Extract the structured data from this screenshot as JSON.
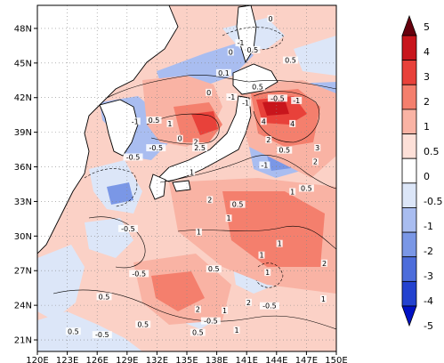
{
  "map": {
    "lon_ticks": [
      "120E",
      "123E",
      "126E",
      "129E",
      "132E",
      "135E",
      "138E",
      "141E",
      "144E",
      "147E",
      "150E"
    ],
    "lat_ticks": [
      "21N",
      "24N",
      "27N",
      "30N",
      "33N",
      "36N",
      "39N",
      "42N",
      "45N",
      "48N"
    ],
    "lon_range": [
      120,
      150
    ],
    "lat_range": [
      20,
      50
    ]
  },
  "colorbar": {
    "levels": [
      "5",
      "4",
      "3",
      "2",
      "1",
      "0.5",
      "0",
      "-0.5",
      "-1",
      "-2",
      "-3",
      "-4",
      "-5"
    ],
    "colors": [
      "#67000d",
      "#c8151c",
      "#e8413a",
      "#f47f6d",
      "#f9b3a4",
      "#fde0d8",
      "#ffffff",
      "#dce6f8",
      "#a9bdf0",
      "#7a97e6",
      "#4d6ddb",
      "#2342cf",
      "#0011c4"
    ]
  },
  "contour_labels": [
    {
      "text": "0",
      "lon": 143.4,
      "lat": 48.7
    },
    {
      "text": "0.5",
      "lon": 141.6,
      "lat": 46.0
    },
    {
      "text": "0",
      "lon": 139.4,
      "lat": 45.8
    },
    {
      "text": "-1",
      "lon": 140.4,
      "lat": 46.6
    },
    {
      "text": "0.1",
      "lon": 138.7,
      "lat": 44.0
    },
    {
      "text": "0",
      "lon": 137.2,
      "lat": 42.3
    },
    {
      "text": "-1",
      "lon": 139.5,
      "lat": 41.9
    },
    {
      "text": "-1",
      "lon": 140.9,
      "lat": 41.4
    },
    {
      "text": "0.5",
      "lon": 142.1,
      "lat": 42.8
    },
    {
      "text": "-0.5",
      "lon": 144.1,
      "lat": 41.8
    },
    {
      "text": "-1",
      "lon": 146.0,
      "lat": 41.6
    },
    {
      "text": "0.5",
      "lon": 145.4,
      "lat": 45.1
    },
    {
      "text": "-1",
      "lon": 129.8,
      "lat": 39.8
    },
    {
      "text": "0.5",
      "lon": 131.7,
      "lat": 39.9
    },
    {
      "text": "1",
      "lon": 133.3,
      "lat": 39.6
    },
    {
      "text": "-0.5",
      "lon": 131.9,
      "lat": 37.5
    },
    {
      "text": "-0.5",
      "lon": 129.6,
      "lat": 36.7
    },
    {
      "text": "2",
      "lon": 135.9,
      "lat": 38.0
    },
    {
      "text": "2.5",
      "lon": 136.3,
      "lat": 37.5
    },
    {
      "text": "0",
      "lon": 134.3,
      "lat": 38.3
    },
    {
      "text": "1",
      "lon": 135.5,
      "lat": 35.4
    },
    {
      "text": "4",
      "lon": 142.7,
      "lat": 39.8
    },
    {
      "text": "4",
      "lon": 145.6,
      "lat": 39.6
    },
    {
      "text": "2",
      "lon": 143.2,
      "lat": 38.2
    },
    {
      "text": "0.5",
      "lon": 144.8,
      "lat": 37.3
    },
    {
      "text": "3",
      "lon": 148.1,
      "lat": 37.5
    },
    {
      "text": "2",
      "lon": 147.9,
      "lat": 36.3
    },
    {
      "text": "-1",
      "lon": 142.8,
      "lat": 36.0
    },
    {
      "text": "0.5",
      "lon": 147.0,
      "lat": 34.0
    },
    {
      "text": "1",
      "lon": 145.6,
      "lat": 33.7
    },
    {
      "text": "2",
      "lon": 137.3,
      "lat": 33.0
    },
    {
      "text": "0.5",
      "lon": 140.1,
      "lat": 32.6
    },
    {
      "text": "1",
      "lon": 139.2,
      "lat": 31.4
    },
    {
      "text": "-0.5",
      "lon": 129.1,
      "lat": 30.5
    },
    {
      "text": "1",
      "lon": 136.2,
      "lat": 30.2
    },
    {
      "text": "1",
      "lon": 144.3,
      "lat": 29.2
    },
    {
      "text": "2",
      "lon": 148.8,
      "lat": 27.5
    },
    {
      "text": "0.5",
      "lon": 137.7,
      "lat": 27.0
    },
    {
      "text": "-0.5",
      "lon": 130.2,
      "lat": 26.6
    },
    {
      "text": "1",
      "lon": 143.1,
      "lat": 26.7
    },
    {
      "text": "0.5",
      "lon": 126.7,
      "lat": 24.6
    },
    {
      "text": "2",
      "lon": 136.1,
      "lat": 23.5
    },
    {
      "text": "2",
      "lon": 141.2,
      "lat": 24.1
    },
    {
      "text": "-0.5",
      "lon": 143.3,
      "lat": 23.8
    },
    {
      "text": "1",
      "lon": 138.8,
      "lat": 23.4
    },
    {
      "text": "1",
      "lon": 142.5,
      "lat": 28.2
    },
    {
      "text": "1",
      "lon": 148.7,
      "lat": 24.4
    },
    {
      "text": "0.5",
      "lon": 123.6,
      "lat": 21.6
    },
    {
      "text": "-0.5",
      "lon": 126.5,
      "lat": 21.3
    },
    {
      "text": "0.5",
      "lon": 130.6,
      "lat": 22.2
    },
    {
      "text": "0.5",
      "lon": 136.1,
      "lat": 21.5
    },
    {
      "text": "1",
      "lon": 140.0,
      "lat": 21.7
    },
    {
      "text": "-0.5",
      "lon": 137.4,
      "lat": 22.5
    }
  ]
}
